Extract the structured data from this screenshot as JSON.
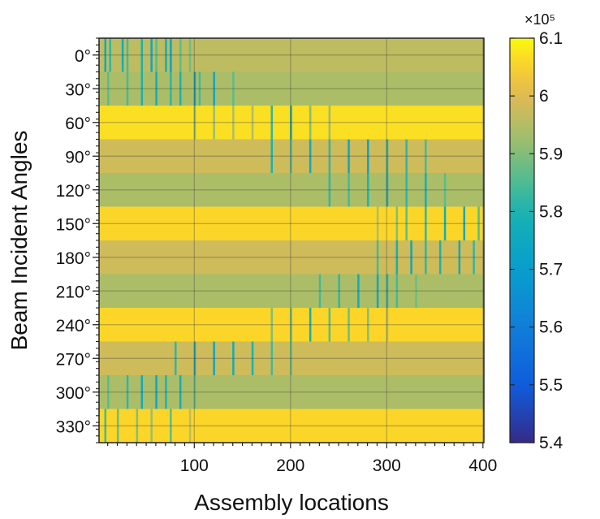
{
  "chart_data": {
    "type": "heatmap",
    "xlabel": "Assembly locations",
    "ylabel": "Beam Incident Angles",
    "x_range": [
      1,
      400
    ],
    "x_ticks": [
      100,
      200,
      300,
      400
    ],
    "x_tick_labels": [
      "100",
      "200",
      "300",
      "400"
    ],
    "y_categories": [
      "0°",
      "30°",
      "60°",
      "90°",
      "120°",
      "150°",
      "180°",
      "210°",
      "240°",
      "270°",
      "300°",
      "330°"
    ],
    "rows": [
      {
        "angle": "0°",
        "baseline": 596000,
        "dips": [
          [
            7,
            576000
          ],
          [
            12,
            582000
          ],
          [
            25,
            578000
          ],
          [
            30,
            584000
          ],
          [
            45,
            580000
          ],
          [
            55,
            574000
          ],
          [
            60,
            586000
          ],
          [
            70,
            578000
          ],
          [
            75,
            573000
          ],
          [
            85,
            586000
          ],
          [
            95,
            588000
          ]
        ]
      },
      {
        "angle": "30°",
        "baseline": 594000,
        "dips": [
          [
            10,
            586000
          ],
          [
            30,
            584000
          ],
          [
            45,
            580000
          ],
          [
            60,
            578000
          ],
          [
            75,
            582000
          ],
          [
            85,
            580000
          ],
          [
            100,
            572000
          ],
          [
            105,
            584000
          ],
          [
            120,
            574000
          ],
          [
            140,
            586000
          ]
        ]
      },
      {
        "angle": "60°",
        "baseline": 607000,
        "dips": [
          [
            100,
            590000
          ],
          [
            120,
            592000
          ],
          [
            140,
            594000
          ],
          [
            160,
            594000
          ],
          [
            180,
            582000
          ],
          [
            200,
            576000
          ],
          [
            220,
            590000
          ],
          [
            240,
            592000
          ]
        ]
      },
      {
        "angle": "90°",
        "baseline": 598000,
        "dips": [
          [
            180,
            580000
          ],
          [
            200,
            584000
          ],
          [
            220,
            576000
          ],
          [
            240,
            582000
          ],
          [
            260,
            574000
          ],
          [
            280,
            572000
          ],
          [
            300,
            578000
          ],
          [
            320,
            582000
          ],
          [
            340,
            584000
          ]
        ]
      },
      {
        "angle": "120°",
        "baseline": 594000,
        "dips": [
          [
            240,
            582000
          ],
          [
            260,
            584000
          ],
          [
            280,
            580000
          ],
          [
            300,
            576000
          ],
          [
            320,
            582000
          ],
          [
            340,
            578000
          ],
          [
            360,
            586000
          ]
        ]
      },
      {
        "angle": "150°",
        "baseline": 606000,
        "dips": [
          [
            290,
            594000
          ],
          [
            310,
            590000
          ],
          [
            320,
            586000
          ],
          [
            340,
            582000
          ],
          [
            360,
            578000
          ],
          [
            380,
            574000
          ],
          [
            395,
            586000
          ]
        ]
      },
      {
        "angle": "180°",
        "baseline": 598000,
        "dips": [
          [
            290,
            584000
          ],
          [
            310,
            578000
          ],
          [
            325,
            574000
          ],
          [
            340,
            582000
          ],
          [
            355,
            580000
          ],
          [
            375,
            576000
          ],
          [
            390,
            582000
          ]
        ]
      },
      {
        "angle": "210°",
        "baseline": 594000,
        "dips": [
          [
            230,
            584000
          ],
          [
            250,
            582000
          ],
          [
            270,
            576000
          ],
          [
            290,
            574000
          ],
          [
            300,
            580000
          ],
          [
            310,
            584000
          ],
          [
            330,
            588000
          ]
        ]
      },
      {
        "angle": "240°",
        "baseline": 606000,
        "dips": [
          [
            180,
            590000
          ],
          [
            200,
            586000
          ],
          [
            220,
            578000
          ],
          [
            240,
            586000
          ],
          [
            260,
            588000
          ],
          [
            280,
            590000
          ],
          [
            300,
            594000
          ]
        ]
      },
      {
        "angle": "270°",
        "baseline": 598000,
        "dips": [
          [
            80,
            582000
          ],
          [
            100,
            576000
          ],
          [
            120,
            574000
          ],
          [
            140,
            578000
          ],
          [
            160,
            580000
          ],
          [
            180,
            584000
          ],
          [
            200,
            586000
          ]
        ]
      },
      {
        "angle": "300°",
        "baseline": 594000,
        "dips": [
          [
            10,
            586000
          ],
          [
            30,
            582000
          ],
          [
            45,
            576000
          ],
          [
            60,
            574000
          ],
          [
            70,
            580000
          ],
          [
            85,
            578000
          ],
          [
            100,
            586000
          ]
        ]
      },
      {
        "angle": "330°",
        "baseline": 606000,
        "dips": [
          [
            7,
            584000
          ],
          [
            20,
            588000
          ],
          [
            40,
            590000
          ],
          [
            55,
            592000
          ],
          [
            75,
            586000
          ],
          [
            95,
            596000
          ]
        ]
      }
    ],
    "colorbar": {
      "min": 540000,
      "max": 610000,
      "ticks": [
        540000,
        550000,
        560000,
        570000,
        580000,
        590000,
        600000,
        610000
      ],
      "tick_labels": [
        "5.4",
        "5.5",
        "5.6",
        "5.7",
        "5.8",
        "5.9",
        "6",
        "6.1"
      ],
      "exponent_label": "×10⁵",
      "colormap": "parula"
    },
    "grid": true
  }
}
